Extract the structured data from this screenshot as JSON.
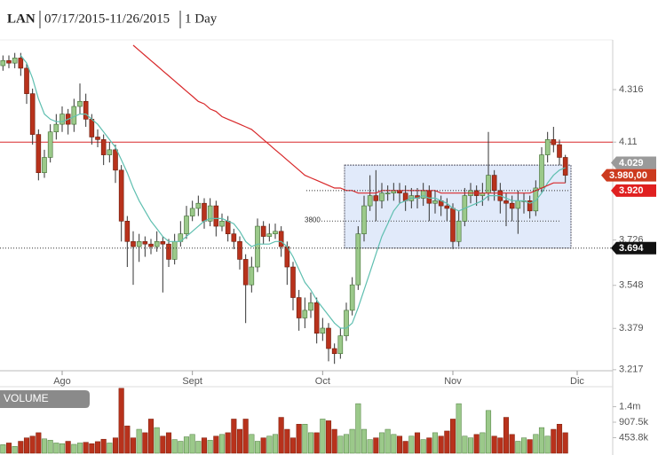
{
  "chart_data": {
    "type": "candlestick",
    "title": "LAN",
    "subtitle": "07/17/2015-11/26/2015",
    "interval": "1 Day",
    "xlim": [
      -0.5,
      103
    ],
    "xticks": [
      {
        "value": 10,
        "label": "Ago"
      },
      {
        "value": 32,
        "label": "Sept"
      },
      {
        "value": 54,
        "label": "Oct"
      },
      {
        "value": 76,
        "label": "Nov"
      },
      {
        "value": 97,
        "label": "Dic"
      }
    ],
    "ylim": [
      3.206,
      4.511
    ],
    "yticks": [
      3.217,
      3.379,
      3.548,
      3.726,
      4.11,
      4.316
    ],
    "up_color": "#9bc98a",
    "down_color": "#b8321c",
    "open": [
      4.41,
      4.43,
      4.42,
      4.44,
      4.4,
      4.3,
      4.14,
      3.99,
      4.05,
      4.15,
      4.18,
      4.22,
      4.18,
      4.25,
      4.27,
      4.2,
      4.13,
      4.12,
      4.06,
      4.08,
      4.0,
      3.8,
      3.72,
      3.7,
      3.72,
      3.71,
      3.7,
      3.72,
      3.71,
      3.65,
      3.72,
      3.75,
      3.82,
      3.85,
      3.87,
      3.8,
      3.86,
      3.78,
      3.8,
      3.75,
      3.72,
      3.65,
      3.55,
      3.62,
      3.78,
      3.74,
      3.75,
      3.76,
      3.7,
      3.62,
      3.5,
      3.42,
      3.45,
      3.48,
      3.36,
      3.38,
      3.3,
      3.28,
      3.35,
      3.45,
      3.55,
      3.75,
      3.86,
      3.9,
      3.88,
      3.91,
      3.91,
      3.92,
      3.91,
      3.88,
      3.9,
      3.89,
      3.92,
      3.87,
      3.88,
      3.86,
      3.85,
      3.72,
      3.8,
      3.9,
      3.92,
      3.9,
      3.91,
      3.98,
      3.92,
      3.88,
      3.87,
      3.85,
      3.88,
      3.88,
      3.84,
      3.93,
      4.06,
      4.12,
      4.1,
      4.05
    ],
    "high": [
      4.45,
      4.45,
      4.46,
      4.46,
      4.42,
      4.32,
      4.16,
      4.08,
      4.18,
      4.22,
      4.25,
      4.24,
      4.28,
      4.34,
      4.3,
      4.22,
      4.16,
      4.14,
      4.11,
      4.1,
      4.02,
      3.82,
      3.76,
      3.75,
      3.74,
      3.73,
      3.76,
      3.74,
      3.73,
      3.75,
      3.8,
      3.86,
      3.88,
      3.9,
      3.89,
      3.89,
      3.88,
      3.83,
      3.82,
      3.77,
      3.74,
      3.67,
      3.66,
      3.81,
      3.8,
      3.79,
      3.79,
      3.78,
      3.72,
      3.64,
      3.53,
      3.5,
      3.52,
      3.5,
      3.42,
      3.4,
      3.32,
      3.38,
      3.48,
      3.58,
      3.78,
      3.9,
      3.98,
      4.0,
      3.95,
      3.94,
      3.95,
      3.95,
      3.94,
      3.93,
      3.93,
      3.95,
      3.94,
      3.92,
      3.9,
      3.89,
      3.87,
      3.84,
      3.93,
      3.95,
      3.94,
      3.95,
      4.15,
      4.0,
      3.95,
      3.91,
      3.9,
      3.92,
      3.91,
      3.9,
      3.96,
      4.09,
      4.15,
      4.17,
      4.12,
      4.06
    ],
    "low": [
      4.39,
      4.4,
      4.4,
      4.37,
      4.26,
      4.1,
      3.96,
      3.97,
      4.03,
      4.12,
      4.15,
      4.14,
      4.15,
      4.22,
      4.17,
      4.1,
      4.09,
      4.02,
      4.03,
      3.95,
      3.72,
      3.62,
      3.55,
      3.64,
      3.66,
      3.67,
      3.68,
      3.52,
      3.62,
      3.63,
      3.7,
      3.73,
      3.8,
      3.82,
      3.77,
      3.78,
      3.74,
      3.76,
      3.72,
      3.69,
      3.61,
      3.4,
      3.52,
      3.6,
      3.71,
      3.72,
      3.73,
      3.66,
      3.55,
      3.45,
      3.37,
      3.38,
      3.42,
      3.32,
      3.33,
      3.25,
      3.24,
      3.26,
      3.33,
      3.43,
      3.53,
      3.72,
      3.84,
      3.8,
      3.85,
      3.88,
      3.88,
      3.87,
      3.84,
      3.85,
      3.85,
      3.86,
      3.8,
      3.83,
      3.82,
      3.8,
      3.69,
      3.7,
      3.78,
      3.87,
      3.86,
      3.86,
      3.88,
      3.88,
      3.83,
      3.78,
      3.8,
      3.75,
      3.83,
      3.81,
      3.82,
      3.91,
      4.03,
      4.07,
      4.02,
      3.95
    ],
    "close": [
      4.43,
      4.42,
      4.44,
      4.4,
      4.3,
      4.14,
      3.99,
      4.05,
      4.15,
      4.18,
      4.22,
      4.18,
      4.25,
      4.27,
      4.2,
      4.13,
      4.12,
      4.06,
      4.08,
      4.0,
      3.8,
      3.72,
      3.7,
      3.72,
      3.71,
      3.7,
      3.72,
      3.71,
      3.65,
      3.72,
      3.75,
      3.82,
      3.85,
      3.87,
      3.8,
      3.86,
      3.78,
      3.8,
      3.75,
      3.72,
      3.65,
      3.55,
      3.62,
      3.78,
      3.74,
      3.75,
      3.76,
      3.7,
      3.62,
      3.5,
      3.42,
      3.45,
      3.48,
      3.36,
      3.38,
      3.3,
      3.28,
      3.35,
      3.45,
      3.55,
      3.75,
      3.86,
      3.9,
      3.88,
      3.91,
      3.91,
      3.92,
      3.91,
      3.88,
      3.9,
      3.89,
      3.92,
      3.87,
      3.88,
      3.86,
      3.85,
      3.72,
      3.8,
      3.9,
      3.92,
      3.9,
      3.91,
      3.98,
      3.92,
      3.88,
      3.87,
      3.85,
      3.88,
      3.88,
      3.84,
      3.93,
      4.06,
      4.12,
      4.1,
      4.05,
      3.98
    ],
    "overlays": [
      {
        "color": "#5fbfb0",
        "values": [
          null,
          null,
          null,
          4.45,
          4.42,
          4.36,
          4.28,
          4.22,
          4.2,
          4.19,
          4.19,
          4.2,
          4.21,
          4.22,
          4.22,
          4.2,
          4.18,
          4.15,
          4.12,
          4.09,
          4.04,
          3.99,
          3.93,
          3.88,
          3.84,
          3.8,
          3.77,
          3.74,
          3.72,
          3.72,
          3.72,
          3.74,
          3.76,
          3.78,
          3.8,
          3.81,
          3.81,
          3.81,
          3.8,
          3.79,
          3.76,
          3.72,
          3.7,
          3.71,
          3.71,
          3.71,
          3.72,
          3.72,
          3.7,
          3.66,
          3.61,
          3.56,
          3.53,
          3.49,
          3.46,
          3.43,
          3.4,
          3.38,
          3.38,
          3.4,
          3.46,
          3.53,
          3.6,
          3.67,
          3.74,
          3.79,
          3.84,
          3.87,
          3.88,
          3.89,
          3.89,
          3.9,
          3.89,
          3.89,
          3.88,
          3.87,
          3.85,
          3.84,
          3.85,
          3.86,
          3.87,
          3.88,
          3.9,
          3.9,
          3.9,
          3.89,
          3.88,
          3.88,
          3.88,
          3.87,
          3.88,
          3.91,
          3.95,
          3.98,
          4.0,
          4.01
        ]
      },
      {
        "color": "#d8282a",
        "values": [
          null,
          null,
          null,
          null,
          null,
          null,
          null,
          null,
          null,
          null,
          null,
          null,
          null,
          null,
          null,
          null,
          null,
          null,
          null,
          null,
          null,
          null,
          4.49,
          4.47,
          4.45,
          4.43,
          4.41,
          4.39,
          4.37,
          4.35,
          4.33,
          4.31,
          4.29,
          4.27,
          4.26,
          4.24,
          4.23,
          4.21,
          4.2,
          4.19,
          4.18,
          4.17,
          4.16,
          4.14,
          4.12,
          4.1,
          4.08,
          4.06,
          4.04,
          4.02,
          4.0,
          3.98,
          3.97,
          3.96,
          3.95,
          3.94,
          3.93,
          3.93,
          3.92,
          3.92,
          3.91,
          3.91,
          3.91,
          3.91,
          3.92,
          3.92,
          3.92,
          3.92,
          3.92,
          3.92,
          3.92,
          3.92,
          3.92,
          3.92,
          3.91,
          3.91,
          3.91,
          3.91,
          3.91,
          3.91,
          3.91,
          3.91,
          3.91,
          3.91,
          3.91,
          3.91,
          3.91,
          3.91,
          3.91,
          3.91,
          3.92,
          3.93,
          3.94,
          3.95,
          3.95,
          3.95
        ]
      }
    ],
    "resistance_line": {
      "value": 4.11,
      "color": "#d8282a"
    },
    "range_box": {
      "top": 4.02,
      "bottom": 3.694
    },
    "level_labels": [
      {
        "value": 3.8,
        "label": "3800"
      }
    ],
    "price_labels": [
      {
        "value": 4.029,
        "label": "4.029",
        "color": "#9a9a9a"
      },
      {
        "value": 3.98,
        "label": "3.980,00",
        "color": "#cc3a1e"
      },
      {
        "value": 3.92,
        "label": "3.920",
        "color": "#e02020"
      },
      {
        "value": 3.694,
        "label": "3.694",
        "color": "#111111"
      }
    ],
    "volume": {
      "label": "VOLUME",
      "ylim": [
        0,
        1920000
      ],
      "yticks": [
        {
          "value": 453800,
          "label": "453.8k"
        },
        {
          "value": 907500,
          "label": "907.5k"
        },
        {
          "value": 1361300,
          "label": "1.4m"
        }
      ],
      "values": [
        250000,
        300000,
        200000,
        350000,
        450000,
        500000,
        600000,
        420000,
        380000,
        300000,
        280000,
        350000,
        260000,
        300000,
        320000,
        280000,
        340000,
        410000,
        300000,
        450000,
        1900000,
        800000,
        450000,
        700000,
        600000,
        1000000,
        750000,
        500000,
        600000,
        400000,
        350000,
        480000,
        550000,
        350000,
        450000,
        380000,
        500000,
        550000,
        600000,
        1000000,
        700000,
        1000000,
        550000,
        350000,
        450000,
        500000,
        550000,
        1050000,
        700000,
        450000,
        850000,
        850000,
        600000,
        600000,
        1000000,
        950000,
        700000,
        500000,
        550000,
        700000,
        1450000,
        700000,
        400000,
        450000,
        600000,
        700000,
        550000,
        500000,
        350000,
        500000,
        600000,
        400000,
        450000,
        600000,
        500000,
        650000,
        1000000,
        1450000,
        500000,
        450000,
        550000,
        600000,
        1250000,
        500000,
        450000,
        1050000,
        550000,
        350000,
        450000,
        400000,
        550000,
        750000,
        500000,
        700000,
        850000,
        600000
      ]
    }
  }
}
